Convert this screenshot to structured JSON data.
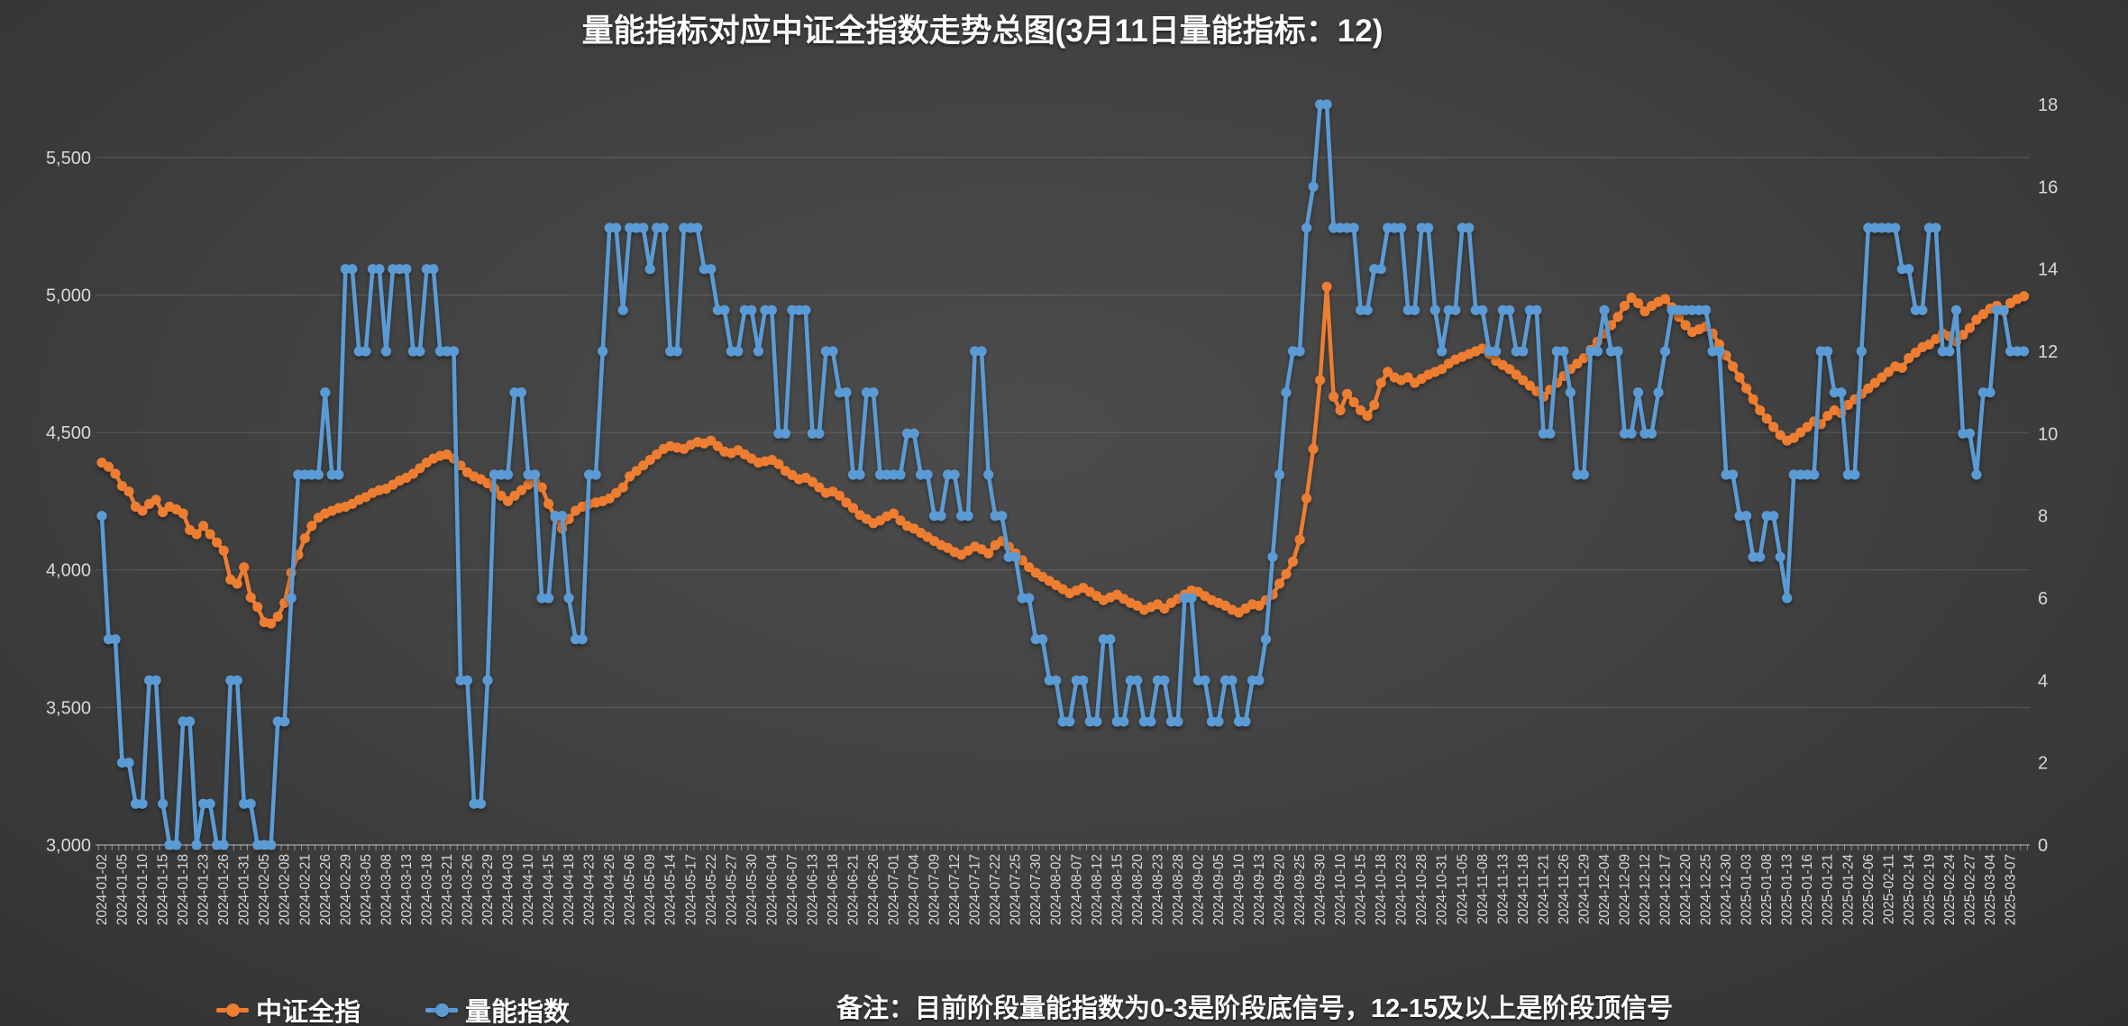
{
  "title": "量能指标对应中证全指数走势总图(3月11日量能指标：12)",
  "footnote": "备注：目前阶段量能指数为0-3是阶段底信号，12-15及以上是阶段顶信号",
  "colors": {
    "csi_line": "#ED7D31",
    "volume_line": "#5B9BD5",
    "axis_text": "#D9D9D9",
    "gridline": "rgba(255,255,255,0.16)",
    "axis_line": "rgba(255,255,255,0.45)",
    "title_text": "#FFFFFF"
  },
  "legend": [
    {
      "label": "中证全指",
      "color": "#ED7D31"
    },
    {
      "label": "量能指数",
      "color": "#5B9BD5"
    }
  ],
  "y_axis_left": {
    "tick_labels": [
      "3,000",
      "3,500",
      "4,000",
      "4,500",
      "5,000",
      "5,500"
    ],
    "tick_values": [
      3000,
      3500,
      4000,
      4500,
      5000,
      5500
    ],
    "min": 3000,
    "max": 5692
  },
  "y_axis_right": {
    "tick_labels": [
      "0",
      "2",
      "4",
      "6",
      "8",
      "10",
      "12",
      "14",
      "16",
      "18"
    ],
    "tick_values": [
      0,
      2,
      4,
      6,
      8,
      10,
      12,
      14,
      16,
      18
    ],
    "min": 0,
    "max": 18
  },
  "x_axis": {
    "label_interval": 3,
    "labels": [
      "2024-01-02",
      "2024-01-05",
      "2024-01-10",
      "2024-01-15",
      "2024-01-18",
      "2024-01-23",
      "2024-01-26",
      "2024-01-31",
      "2024-02-05",
      "2024-02-08",
      "2024-02-21",
      "2024-02-26",
      "2024-02-29",
      "2024-03-05",
      "2024-03-08",
      "2024-03-13",
      "2024-03-18",
      "2024-03-21",
      "2024-03-26",
      "2024-03-29",
      "2024-04-03",
      "2024-04-10",
      "2024-04-15",
      "2024-04-18",
      "2024-04-23",
      "2024-04-26",
      "2024-05-06",
      "2024-05-09",
      "2024-05-14",
      "2024-05-17",
      "2024-05-22",
      "2024-05-27",
      "2024-05-30",
      "2024-06-04",
      "2024-06-07",
      "2024-06-13",
      "2024-06-18",
      "2024-06-21",
      "2024-06-26",
      "2024-07-01",
      "2024-07-04",
      "2024-07-09",
      "2024-07-12",
      "2024-07-17",
      "2024-07-22",
      "2024-07-25",
      "2024-07-30",
      "2024-08-02",
      "2024-08-07",
      "2024-08-12",
      "2024-08-15",
      "2024-08-20",
      "2024-08-23",
      "2024-08-28",
      "2024-09-02",
      "2024-09-05",
      "2024-09-10",
      "2024-09-13",
      "2024-09-20",
      "2024-09-25",
      "2024-09-30",
      "2024-10-10",
      "2024-10-15",
      "2024-10-18",
      "2024-10-23",
      "2024-10-28",
      "2024-10-31",
      "2024-11-05",
      "2024-11-08",
      "2024-11-13",
      "2024-11-18",
      "2024-11-21",
      "2024-11-26",
      "2024-11-29",
      "2024-12-04",
      "2024-12-09",
      "2024-12-12",
      "2024-12-17",
      "2024-12-20",
      "2024-12-25",
      "2024-12-30",
      "2025-01-03",
      "2025-01-08",
      "2025-01-13",
      "2025-01-16",
      "2025-01-21",
      "2025-01-24",
      "2025-02-06",
      "2025-02-11",
      "2025-02-14",
      "2025-02-19",
      "2025-02-24",
      "2025-02-27",
      "2025-03-04",
      "2025-03-07"
    ]
  },
  "chart_data": {
    "type": "line",
    "title": "量能指标对应中证全指数走势总图(3月11日量能指标：12)",
    "x_range": "2024-01-02 to 2025-03-11 (daily trading sessions, 285 points, tick label every 3rd session)",
    "legend_position": "bottom",
    "grid": "horizontal",
    "series": [
      {
        "name": "中证全指",
        "axis": "left",
        "color": "#ED7D31",
        "ylim": [
          3000,
          5692
        ],
        "values": [
          4390,
          4375,
          4350,
          4305,
          4285,
          4230,
          4215,
          4240,
          4255,
          4210,
          4230,
          4220,
          4205,
          4145,
          4130,
          4160,
          4130,
          4100,
          4070,
          3965,
          3950,
          4010,
          3900,
          3865,
          3810,
          3805,
          3830,
          3880,
          3990,
          4055,
          4115,
          4160,
          4190,
          4205,
          4215,
          4225,
          4230,
          4240,
          4255,
          4265,
          4280,
          4290,
          4295,
          4310,
          4325,
          4335,
          4350,
          4370,
          4390,
          4405,
          4415,
          4420,
          4405,
          4380,
          4355,
          4340,
          4330,
          4315,
          4295,
          4270,
          4250,
          4270,
          4290,
          4310,
          4320,
          4300,
          4240,
          4190,
          4150,
          4185,
          4215,
          4230,
          4240,
          4245,
          4250,
          4260,
          4280,
          4300,
          4340,
          4360,
          4380,
          4400,
          4420,
          4440,
          4450,
          4445,
          4440,
          4455,
          4465,
          4460,
          4470,
          4450,
          4430,
          4425,
          4435,
          4420,
          4405,
          4390,
          4395,
          4400,
          4385,
          4360,
          4345,
          4330,
          4335,
          4320,
          4300,
          4280,
          4285,
          4270,
          4245,
          4225,
          4200,
          4185,
          4170,
          4180,
          4195,
          4205,
          4180,
          4160,
          4150,
          4135,
          4120,
          4105,
          4090,
          4080,
          4065,
          4055,
          4070,
          4085,
          4075,
          4060,
          4090,
          4105,
          4085,
          4060,
          4035,
          4010,
          3990,
          3975,
          3960,
          3945,
          3930,
          3915,
          3925,
          3935,
          3920,
          3905,
          3890,
          3900,
          3910,
          3895,
          3880,
          3870,
          3855,
          3865,
          3875,
          3860,
          3880,
          3895,
          3910,
          3925,
          3920,
          3905,
          3890,
          3880,
          3870,
          3855,
          3845,
          3860,
          3875,
          3870,
          3890,
          3910,
          3950,
          3985,
          4030,
          4110,
          4260,
          4440,
          4690,
          5030,
          4630,
          4580,
          4640,
          4610,
          4580,
          4560,
          4600,
          4680,
          4720,
          4700,
          4690,
          4700,
          4680,
          4695,
          4710,
          4720,
          4730,
          4750,
          4765,
          4775,
          4785,
          4795,
          4805,
          4785,
          4760,
          4745,
          4730,
          4710,
          4690,
          4670,
          4650,
          4630,
          4655,
          4680,
          4705,
          4730,
          4750,
          4770,
          4800,
          4830,
          4860,
          4890,
          4920,
          4960,
          4990,
          4970,
          4940,
          4960,
          4975,
          4985,
          4955,
          4920,
          4890,
          4865,
          4875,
          4885,
          4860,
          4820,
          4780,
          4740,
          4700,
          4660,
          4620,
          4580,
          4550,
          4520,
          4490,
          4470,
          4480,
          4500,
          4520,
          4540,
          4530,
          4560,
          4580,
          4570,
          4600,
          4620,
          4640,
          4660,
          4680,
          4700,
          4720,
          4740,
          4735,
          4770,
          4790,
          4810,
          4820,
          4840,
          4860,
          4850,
          4830,
          4855,
          4880,
          4910,
          4930,
          4950,
          4960,
          4940,
          4970,
          4985,
          4995
        ]
      },
      {
        "name": "量能指数",
        "axis": "right",
        "color": "#5B9BD5",
        "ylim": [
          0,
          18
        ],
        "values": [
          8,
          5,
          5,
          2,
          2,
          1,
          1,
          4,
          4,
          1,
          0,
          0,
          3,
          3,
          0,
          1,
          1,
          0,
          0,
          4,
          4,
          1,
          1,
          0,
          0,
          0,
          3,
          3,
          6,
          9,
          9,
          9,
          9,
          11,
          9,
          9,
          14,
          14,
          12,
          12,
          14,
          14,
          12,
          14,
          14,
          14,
          12,
          12,
          14,
          14,
          12,
          12,
          12,
          4,
          4,
          1,
          1,
          4,
          9,
          9,
          9,
          11,
          11,
          9,
          9,
          6,
          6,
          8,
          8,
          6,
          5,
          5,
          9,
          9,
          12,
          15,
          15,
          13,
          15,
          15,
          15,
          14,
          15,
          15,
          12,
          12,
          15,
          15,
          15,
          14,
          14,
          13,
          13,
          12,
          12,
          13,
          13,
          12,
          13,
          13,
          10,
          10,
          13,
          13,
          13,
          10,
          10,
          12,
          12,
          11,
          11,
          9,
          9,
          11,
          11,
          9,
          9,
          9,
          9,
          10,
          10,
          9,
          9,
          8,
          8,
          9,
          9,
          8,
          8,
          12,
          12,
          9,
          8,
          8,
          7,
          7,
          6,
          6,
          5,
          5,
          4,
          4,
          3,
          3,
          4,
          4,
          3,
          3,
          5,
          5,
          3,
          3,
          4,
          4,
          3,
          3,
          4,
          4,
          3,
          3,
          6,
          6,
          4,
          4,
          3,
          3,
          4,
          4,
          3,
          3,
          4,
          4,
          5,
          7,
          9,
          11,
          12,
          12,
          15,
          16,
          18,
          18,
          15,
          15,
          15,
          15,
          13,
          13,
          14,
          14,
          15,
          15,
          15,
          13,
          13,
          15,
          15,
          13,
          12,
          13,
          13,
          15,
          15,
          13,
          13,
          12,
          12,
          13,
          13,
          12,
          12,
          13,
          13,
          10,
          10,
          12,
          12,
          11,
          9,
          9,
          12,
          12,
          13,
          12,
          12,
          10,
          10,
          11,
          10,
          10,
          11,
          12,
          13,
          13,
          13,
          13,
          13,
          13,
          12,
          12,
          9,
          9,
          8,
          8,
          7,
          7,
          8,
          8,
          7,
          6,
          9,
          9,
          9,
          9,
          12,
          12,
          11,
          11,
          9,
          9,
          12,
          15,
          15,
          15,
          15,
          15,
          14,
          14,
          13,
          13,
          15,
          15,
          12,
          12,
          13,
          10,
          10,
          9,
          11,
          11,
          13,
          13,
          12,
          12,
          12
        ]
      }
    ]
  }
}
